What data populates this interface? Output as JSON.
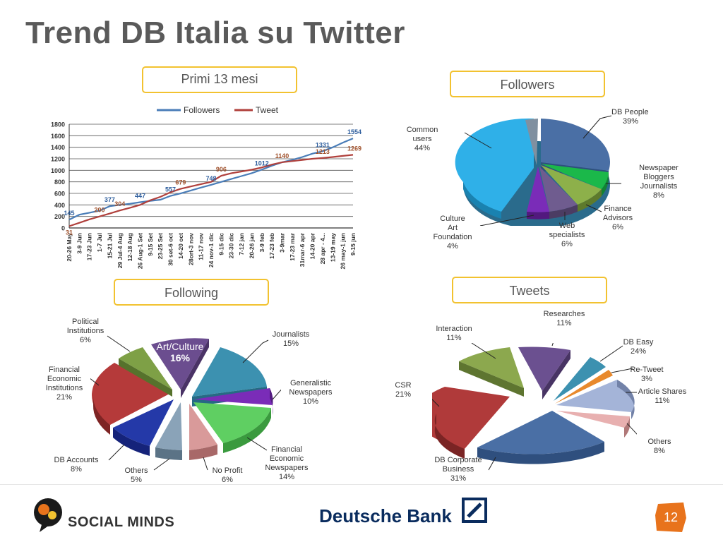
{
  "slide": {
    "title": "Trend DB Italia su Twitter",
    "page_number": "12"
  },
  "labels": {
    "line_chart_box": "Primi 13 mesi",
    "followers_box": "Followers",
    "following_box": "Following",
    "tweets_box": "Tweets"
  },
  "footer": {
    "social_minds": "SOCIAL MINDS",
    "deutsche_bank": "Deutsche Bank"
  },
  "colors": {
    "followers_line": "#4a7db8",
    "tweet_line": "#b0403c",
    "callout_border": "#f2c230",
    "page_badge": "#e8731c",
    "db_blue": "#0a2c5e"
  },
  "chart_data": [
    {
      "type": "line",
      "title": "",
      "legend": [
        "Followers",
        "Tweet"
      ],
      "legend_position": "top",
      "xlabel": "",
      "ylabel": "",
      "ylim": [
        0,
        1800
      ],
      "y_ticks": [
        0,
        200,
        400,
        600,
        800,
        1000,
        1200,
        1400,
        1600,
        1800
      ],
      "grid": true,
      "x_tick_labels": [
        "20-26 May",
        "3-9 Jun",
        "17-23 Jun",
        "1-7 Jul",
        "15-21 Jul",
        "29 Jul-4 Aug",
        "12-18 Aug",
        "26 Aug-1 Set",
        "9-15 Set",
        "23-25 Set",
        "30 set-6 oct",
        "14-20 oct",
        "28ort-3 nov",
        "11-17 nov",
        "24 nov-1 dic",
        "9-15 dic",
        "23-30 dic",
        "7-12 jan",
        "20-26 jan",
        "3-9 feb",
        "17-23 feb",
        "3-9mar",
        "17-23 mar",
        "31mar-6 apr",
        "14-20 apr",
        "28 apr - 4...",
        "13-19 may",
        "26 may-1 jun",
        "9-15 jun"
      ],
      "series": [
        {
          "name": "Followers",
          "values": [
            145,
            230,
            265,
            300,
            377,
            400,
            420,
            447,
            470,
            490,
            557,
            600,
            650,
            700,
            748,
            800,
            850,
            900,
            950,
            1012,
            1080,
            1140,
            1180,
            1230,
            1290,
            1331,
            1400,
            1480,
            1554
          ],
          "labels": {
            "0": "145",
            "4": "377",
            "7": "447",
            "10": "557",
            "14": "748",
            "19": "1012",
            "25": "1331",
            "28": "1554"
          }
        },
        {
          "name": "Tweet",
          "values": [
            31,
            90,
            150,
            200,
            250,
            304,
            350,
            400,
            480,
            540,
            620,
            679,
            720,
            760,
            800,
            906,
            950,
            980,
            1010,
            1050,
            1100,
            1140,
            1160,
            1180,
            1200,
            1213,
            1230,
            1250,
            1269
          ],
          "labels": {
            "0": "31",
            "3": "200",
            "5": "304",
            "11": "679",
            "15": "906",
            "21": "1140",
            "25": "1213",
            "28": "1269"
          }
        }
      ]
    },
    {
      "type": "pie",
      "title": "Followers",
      "slices": [
        {
          "label": "DB People",
          "value": 39,
          "display": "39%"
        },
        {
          "label": "Newspaper Bloggers Journalists",
          "value": 8,
          "display": "8%"
        },
        {
          "label": "Finance Advisors",
          "value": 6,
          "display": "6%"
        },
        {
          "label": "Web specialists",
          "value": 6,
          "display": "6%"
        },
        {
          "label": "Culture Art Foundation",
          "value": 4,
          "display": "4%"
        },
        {
          "label": "Common users",
          "value": 44,
          "display": "44%"
        }
      ]
    },
    {
      "type": "pie",
      "title": "Following",
      "slices": [
        {
          "label": "Art/Culture",
          "value": 16,
          "display": "16%"
        },
        {
          "label": "Journalists",
          "value": 15,
          "display": "15%"
        },
        {
          "label": "Generalistic Newspapers",
          "value": 10,
          "display": "10%"
        },
        {
          "label": "Financial Economic Newspapers",
          "value": 14,
          "display": "14%"
        },
        {
          "label": "No Profit",
          "value": 6,
          "display": "6%"
        },
        {
          "label": "Others",
          "value": 5,
          "display": "5%"
        },
        {
          "label": "DB Accounts",
          "value": 8,
          "display": "8%"
        },
        {
          "label": "Financial Economic Institutions",
          "value": 21,
          "display": "21%"
        },
        {
          "label": "Political Institutions",
          "value": 6,
          "display": "6%"
        }
      ]
    },
    {
      "type": "pie",
      "title": "Tweets",
      "slices": [
        {
          "label": "Researches",
          "value": 11,
          "display": "11%"
        },
        {
          "label": "DB Easy",
          "value": 24,
          "display": "24%"
        },
        {
          "label": "Re-Tweet",
          "value": 3,
          "display": "3%"
        },
        {
          "label": "Article Shares",
          "value": 11,
          "display": "11%"
        },
        {
          "label": "Others",
          "value": 8,
          "display": "8%"
        },
        {
          "label": "DB Corporate Business",
          "value": 31,
          "display": "31%"
        },
        {
          "label": "CSR",
          "value": 21,
          "display": "21%"
        },
        {
          "label": "Interaction",
          "value": 11,
          "display": "11%"
        }
      ]
    }
  ]
}
